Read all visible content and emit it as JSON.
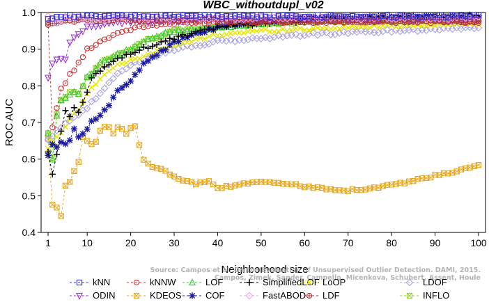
{
  "chart_data": {
    "type": "line",
    "title": "WBC_withoutdupl_v02",
    "xlabel": "Neighborhood size",
    "ylabel": "ROC AUC",
    "xlim": [
      1,
      100
    ],
    "ylim": [
      0.4,
      1.0
    ],
    "xticks": [
      1,
      10,
      20,
      30,
      40,
      50,
      60,
      70,
      80,
      90,
      100
    ],
    "yticks": [
      0.4,
      0.5,
      0.6,
      0.7,
      0.8,
      0.9,
      1.0
    ],
    "grid": false,
    "legend_position": "bottom",
    "credit_lines": [
      "Source: Campos et al. On the Evaluation of Unsupervised Outlier Detection. DAMI, 2015.",
      "Campos, Zimek, Sander, Campello, Micenkova, Schubert, Assent, Houle"
    ],
    "series": [
      {
        "name": "kNN",
        "color": "#3333cc",
        "marker": "square",
        "anchors": [
          [
            1,
            0.985
          ],
          [
            3,
            0.99
          ],
          [
            10,
            0.99
          ],
          [
            30,
            0.99
          ],
          [
            60,
            0.99
          ],
          [
            100,
            0.99
          ]
        ]
      },
      {
        "name": "kNNW",
        "color": "#cc3333",
        "marker": "circle",
        "anchors": [
          [
            1,
            0.97
          ],
          [
            2,
            0.69
          ],
          [
            3,
            0.74
          ],
          [
            4,
            0.79
          ],
          [
            5,
            0.81
          ],
          [
            6,
            0.83
          ],
          [
            8,
            0.86
          ],
          [
            10,
            0.9
          ],
          [
            13,
            0.92
          ],
          [
            16,
            0.94
          ],
          [
            20,
            0.955
          ],
          [
            25,
            0.965
          ],
          [
            30,
            0.97
          ],
          [
            40,
            0.975
          ],
          [
            60,
            0.975
          ],
          [
            100,
            0.975
          ]
        ]
      },
      {
        "name": "LOF",
        "color": "#33cc33",
        "marker": "triangle",
        "anchors": [
          [
            1,
            0.67
          ],
          [
            2,
            0.6
          ],
          [
            3,
            0.72
          ],
          [
            4,
            0.76
          ],
          [
            5,
            0.77
          ],
          [
            6,
            0.78
          ],
          [
            8,
            0.78
          ],
          [
            10,
            0.82
          ],
          [
            13,
            0.86
          ],
          [
            16,
            0.88
          ],
          [
            20,
            0.9
          ],
          [
            25,
            0.93
          ],
          [
            30,
            0.95
          ],
          [
            40,
            0.96
          ],
          [
            50,
            0.97
          ],
          [
            60,
            0.98
          ],
          [
            100,
            0.985
          ]
        ]
      },
      {
        "name": "SimplifiedLOF",
        "color": "#000000",
        "marker": "plus",
        "anchors": [
          [
            1,
            0.62
          ],
          [
            2,
            0.56
          ],
          [
            3,
            0.61
          ],
          [
            4,
            0.68
          ],
          [
            5,
            0.73
          ],
          [
            6,
            0.72
          ],
          [
            7,
            0.74
          ],
          [
            8,
            0.73
          ],
          [
            10,
            0.78
          ],
          [
            11,
            0.82
          ],
          [
            13,
            0.84
          ],
          [
            15,
            0.86
          ],
          [
            20,
            0.89
          ],
          [
            25,
            0.91
          ],
          [
            30,
            0.93
          ],
          [
            40,
            0.96
          ],
          [
            50,
            0.97
          ],
          [
            70,
            0.985
          ],
          [
            100,
            0.99
          ]
        ]
      },
      {
        "name": "LoOP",
        "color": "#e6e600",
        "marker": "x",
        "anchors": [
          [
            1,
            0.63
          ],
          [
            3,
            0.66
          ],
          [
            5,
            0.69
          ],
          [
            8,
            0.74
          ],
          [
            10,
            0.78
          ],
          [
            13,
            0.82
          ],
          [
            16,
            0.85
          ],
          [
            20,
            0.87
          ],
          [
            25,
            0.89
          ],
          [
            30,
            0.91
          ],
          [
            40,
            0.94
          ],
          [
            50,
            0.95
          ],
          [
            70,
            0.96
          ],
          [
            100,
            0.97
          ]
        ]
      },
      {
        "name": "LDOF",
        "color": "#a9a0e0",
        "marker": "diamond",
        "anchors": [
          [
            1,
            0.65
          ],
          [
            5,
            0.7
          ],
          [
            10,
            0.74
          ],
          [
            13,
            0.78
          ],
          [
            16,
            0.82
          ],
          [
            20,
            0.86
          ],
          [
            25,
            0.88
          ],
          [
            30,
            0.9
          ],
          [
            40,
            0.92
          ],
          [
            50,
            0.93
          ],
          [
            60,
            0.94
          ],
          [
            80,
            0.95
          ],
          [
            100,
            0.96
          ]
        ]
      },
      {
        "name": "ODIN",
        "color": "#9933cc",
        "marker": "triangle-down",
        "anchors": [
          [
            1,
            0.82
          ],
          [
            2,
            0.86
          ],
          [
            3,
            0.87
          ],
          [
            4,
            0.87
          ],
          [
            5,
            0.87
          ],
          [
            6,
            0.92
          ],
          [
            8,
            0.94
          ],
          [
            10,
            0.96
          ],
          [
            15,
            0.97
          ],
          [
            20,
            0.975
          ],
          [
            40,
            0.98
          ],
          [
            100,
            0.98
          ]
        ]
      },
      {
        "name": "KDEOS",
        "color": "#e6a820",
        "marker": "square-x",
        "anchors": [
          [
            1,
            0.655
          ],
          [
            2,
            0.475
          ],
          [
            3,
            0.47
          ],
          [
            4,
            0.445
          ],
          [
            5,
            0.525
          ],
          [
            6,
            0.54
          ],
          [
            7,
            0.57
          ],
          [
            8,
            0.59
          ],
          [
            9,
            0.66
          ],
          [
            10,
            0.65
          ],
          [
            11,
            0.64
          ],
          [
            12,
            0.65
          ],
          [
            13,
            0.68
          ],
          [
            14,
            0.69
          ],
          [
            15,
            0.69
          ],
          [
            16,
            0.67
          ],
          [
            17,
            0.685
          ],
          [
            18,
            0.685
          ],
          [
            19,
            0.67
          ],
          [
            20,
            0.685
          ],
          [
            21,
            0.69
          ],
          [
            22,
            0.64
          ],
          [
            23,
            0.6
          ],
          [
            25,
            0.58
          ],
          [
            28,
            0.57
          ],
          [
            30,
            0.55
          ],
          [
            33,
            0.54
          ],
          [
            35,
            0.53
          ],
          [
            38,
            0.54
          ],
          [
            40,
            0.52
          ],
          [
            45,
            0.53
          ],
          [
            50,
            0.54
          ],
          [
            55,
            0.535
          ],
          [
            60,
            0.525
          ],
          [
            65,
            0.52
          ],
          [
            70,
            0.515
          ],
          [
            75,
            0.52
          ],
          [
            80,
            0.53
          ],
          [
            85,
            0.54
          ],
          [
            90,
            0.555
          ],
          [
            95,
            0.565
          ],
          [
            100,
            0.585
          ]
        ]
      },
      {
        "name": "COF",
        "color": "#1a1aa6",
        "marker": "asterisk",
        "anchors": [
          [
            1,
            0.61
          ],
          [
            2,
            0.64
          ],
          [
            3,
            0.63
          ],
          [
            4,
            0.65
          ],
          [
            5,
            0.64
          ],
          [
            6,
            0.65
          ],
          [
            7,
            0.68
          ],
          [
            8,
            0.66
          ],
          [
            10,
            0.68
          ],
          [
            11,
            0.7
          ],
          [
            13,
            0.72
          ],
          [
            15,
            0.75
          ],
          [
            17,
            0.79
          ],
          [
            19,
            0.8
          ],
          [
            21,
            0.83
          ],
          [
            23,
            0.86
          ],
          [
            25,
            0.88
          ],
          [
            28,
            0.9
          ],
          [
            30,
            0.92
          ],
          [
            35,
            0.94
          ],
          [
            40,
            0.96
          ],
          [
            50,
            0.975
          ],
          [
            60,
            0.985
          ],
          [
            100,
            0.99
          ]
        ]
      },
      {
        "name": "FastABOD",
        "color": "#f2a0f2",
        "marker": "diamond",
        "anchors": [
          [
            1,
            0.99
          ],
          [
            3,
            0.975
          ],
          [
            5,
            0.985
          ],
          [
            10,
            0.985
          ],
          [
            30,
            0.985
          ],
          [
            100,
            0.985
          ]
        ]
      },
      {
        "name": "LDF",
        "color": "#b03030",
        "marker": "circle-plus",
        "anchors": [
          [
            1,
            0.97
          ],
          [
            5,
            0.975
          ],
          [
            10,
            0.98
          ],
          [
            30,
            0.98
          ],
          [
            60,
            0.975
          ],
          [
            100,
            0.975
          ]
        ]
      },
      {
        "name": "INFLO",
        "color": "#99cc33",
        "marker": "square-x",
        "anchors": [
          [
            1,
            0.67
          ],
          [
            2,
            0.6
          ],
          [
            3,
            0.72
          ],
          [
            4,
            0.76
          ],
          [
            5,
            0.77
          ],
          [
            6,
            0.78
          ],
          [
            8,
            0.78
          ],
          [
            10,
            0.82
          ],
          [
            13,
            0.86
          ],
          [
            16,
            0.88
          ],
          [
            20,
            0.9
          ],
          [
            25,
            0.93
          ],
          [
            30,
            0.95
          ],
          [
            40,
            0.96
          ],
          [
            50,
            0.97
          ],
          [
            60,
            0.975
          ],
          [
            100,
            0.98
          ]
        ]
      }
    ]
  }
}
